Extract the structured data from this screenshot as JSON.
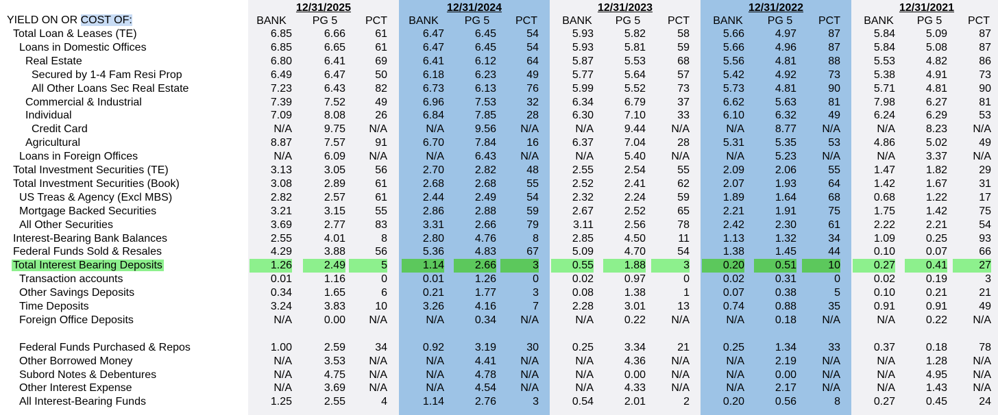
{
  "title_prefix": "YIELD ON OR ",
  "title_highlight": "COST OF:",
  "column_headers": [
    "BANK",
    "PG 5",
    "PCT"
  ],
  "periods": [
    {
      "date": "12/31/2025",
      "shade": "light"
    },
    {
      "date": "12/31/2024",
      "shade": "blue"
    },
    {
      "date": "12/31/2023",
      "shade": "light"
    },
    {
      "date": "12/31/2022",
      "shade": "blue"
    },
    {
      "date": "12/31/2021",
      "shade": "light"
    }
  ],
  "colors": {
    "light_band": "#f1f1f4",
    "blue_band": "#9dc3e6",
    "highlight": "#8df08d",
    "highlight_dark": "#5cc85c"
  },
  "rows": [
    {
      "label": "Total Loan & Leases (TE)",
      "indent": 1,
      "values": [
        [
          "6.85",
          "6.66",
          "61"
        ],
        [
          "6.47",
          "6.45",
          "54"
        ],
        [
          "5.93",
          "5.82",
          "58"
        ],
        [
          "5.66",
          "4.97",
          "87"
        ],
        [
          "5.84",
          "5.09",
          "87"
        ]
      ]
    },
    {
      "label": "Loans in Domestic Offices",
      "indent": 2,
      "values": [
        [
          "6.85",
          "6.65",
          "61"
        ],
        [
          "6.47",
          "6.45",
          "54"
        ],
        [
          "5.93",
          "5.81",
          "59"
        ],
        [
          "5.66",
          "4.96",
          "87"
        ],
        [
          "5.84",
          "5.08",
          "87"
        ]
      ]
    },
    {
      "label": "Real Estate",
      "indent": 3,
      "values": [
        [
          "6.80",
          "6.41",
          "69"
        ],
        [
          "6.41",
          "6.12",
          "64"
        ],
        [
          "5.87",
          "5.53",
          "68"
        ],
        [
          "5.56",
          "4.81",
          "88"
        ],
        [
          "5.53",
          "4.82",
          "86"
        ]
      ]
    },
    {
      "label": "Secured by 1-4 Fam Resi Prop",
      "indent": 4,
      "values": [
        [
          "6.49",
          "6.47",
          "50"
        ],
        [
          "6.18",
          "6.23",
          "49"
        ],
        [
          "5.77",
          "5.64",
          "57"
        ],
        [
          "5.42",
          "4.92",
          "73"
        ],
        [
          "5.38",
          "4.91",
          "73"
        ]
      ]
    },
    {
      "label": "All Other Loans Sec Real Estate",
      "indent": 4,
      "values": [
        [
          "7.23",
          "6.43",
          "82"
        ],
        [
          "6.73",
          "6.13",
          "76"
        ],
        [
          "5.99",
          "5.52",
          "73"
        ],
        [
          "5.73",
          "4.81",
          "90"
        ],
        [
          "5.71",
          "4.81",
          "90"
        ]
      ]
    },
    {
      "label": "Commercial & Industrial",
      "indent": 3,
      "values": [
        [
          "7.39",
          "7.52",
          "49"
        ],
        [
          "6.96",
          "7.53",
          "32"
        ],
        [
          "6.34",
          "6.79",
          "37"
        ],
        [
          "6.62",
          "5.63",
          "81"
        ],
        [
          "7.98",
          "6.27",
          "81"
        ]
      ]
    },
    {
      "label": "Individual",
      "indent": 3,
      "values": [
        [
          "7.09",
          "8.08",
          "26"
        ],
        [
          "6.84",
          "7.85",
          "28"
        ],
        [
          "6.30",
          "7.10",
          "33"
        ],
        [
          "6.10",
          "6.32",
          "49"
        ],
        [
          "6.24",
          "6.29",
          "53"
        ]
      ]
    },
    {
      "label": "Credit Card",
      "indent": 4,
      "values": [
        [
          "N/A",
          "9.75",
          "N/A"
        ],
        [
          "N/A",
          "9.56",
          "N/A"
        ],
        [
          "N/A",
          "9.44",
          "N/A"
        ],
        [
          "N/A",
          "8.77",
          "N/A"
        ],
        [
          "N/A",
          "8.23",
          "N/A"
        ]
      ]
    },
    {
      "label": "Agricultural",
      "indent": 3,
      "values": [
        [
          "8.87",
          "7.57",
          "91"
        ],
        [
          "6.70",
          "7.84",
          "16"
        ],
        [
          "6.37",
          "7.04",
          "28"
        ],
        [
          "5.31",
          "5.35",
          "53"
        ],
        [
          "4.86",
          "5.02",
          "49"
        ]
      ]
    },
    {
      "label": "Loans in Foreign Offices",
      "indent": 2,
      "values": [
        [
          "N/A",
          "6.09",
          "N/A"
        ],
        [
          "N/A",
          "6.43",
          "N/A"
        ],
        [
          "N/A",
          "5.40",
          "N/A"
        ],
        [
          "N/A",
          "5.23",
          "N/A"
        ],
        [
          "N/A",
          "3.37",
          "N/A"
        ]
      ]
    },
    {
      "label": "Total Investment Securities (TE)",
      "indent": 1,
      "values": [
        [
          "3.13",
          "3.05",
          "56"
        ],
        [
          "2.70",
          "2.82",
          "48"
        ],
        [
          "2.55",
          "2.54",
          "55"
        ],
        [
          "2.09",
          "2.06",
          "55"
        ],
        [
          "1.47",
          "1.82",
          "29"
        ]
      ]
    },
    {
      "label": "Total Investment Securities (Book)",
      "indent": 1,
      "values": [
        [
          "3.08",
          "2.89",
          "61"
        ],
        [
          "2.68",
          "2.68",
          "55"
        ],
        [
          "2.52",
          "2.41",
          "62"
        ],
        [
          "2.07",
          "1.93",
          "64"
        ],
        [
          "1.42",
          "1.67",
          "31"
        ]
      ]
    },
    {
      "label": "US Treas & Agency (Excl MBS)",
      "indent": 2,
      "values": [
        [
          "2.82",
          "2.57",
          "61"
        ],
        [
          "2.44",
          "2.49",
          "54"
        ],
        [
          "2.32",
          "2.24",
          "59"
        ],
        [
          "1.89",
          "1.64",
          "68"
        ],
        [
          "0.68",
          "1.22",
          "17"
        ]
      ]
    },
    {
      "label": "Mortgage Backed Securities",
      "indent": 2,
      "values": [
        [
          "3.21",
          "3.15",
          "55"
        ],
        [
          "2.86",
          "2.88",
          "59"
        ],
        [
          "2.67",
          "2.52",
          "65"
        ],
        [
          "2.21",
          "1.91",
          "75"
        ],
        [
          "1.75",
          "1.42",
          "75"
        ]
      ]
    },
    {
      "label": "All Other Securities",
      "indent": 2,
      "values": [
        [
          "3.69",
          "2.77",
          "83"
        ],
        [
          "3.31",
          "2.66",
          "79"
        ],
        [
          "3.11",
          "2.56",
          "78"
        ],
        [
          "2.42",
          "2.30",
          "61"
        ],
        [
          "2.22",
          "2.21",
          "54"
        ]
      ]
    },
    {
      "label": "Interest-Bearing Bank Balances",
      "indent": 1,
      "values": [
        [
          "2.55",
          "4.01",
          "8"
        ],
        [
          "2.80",
          "4.76",
          "8"
        ],
        [
          "2.85",
          "4.50",
          "11"
        ],
        [
          "1.13",
          "1.32",
          "34"
        ],
        [
          "1.09",
          "0.25",
          "93"
        ]
      ]
    },
    {
      "label": "Federal Funds Sold & Resales",
      "indent": 1,
      "values": [
        [
          "4.29",
          "3.88",
          "56"
        ],
        [
          "5.36",
          "4.83",
          "67"
        ],
        [
          "5.09",
          "4.70",
          "54"
        ],
        [
          "1.38",
          "1.45",
          "44"
        ],
        [
          "0.10",
          "0.07",
          "66"
        ]
      ]
    },
    {
      "label": "Total Interest Bearing Deposits",
      "indent": 1,
      "highlight": true,
      "values": [
        [
          "1.26",
          "2.49",
          "5"
        ],
        [
          "1.14",
          "2.66",
          "3"
        ],
        [
          "0.55",
          "1.88",
          "3"
        ],
        [
          "0.20",
          "0.51",
          "10"
        ],
        [
          "0.27",
          "0.41",
          "27"
        ]
      ]
    },
    {
      "label": "Transaction accounts",
      "indent": 2,
      "values": [
        [
          "0.01",
          "1.16",
          "0"
        ],
        [
          "0.01",
          "1.26",
          "0"
        ],
        [
          "0.02",
          "0.97",
          "0"
        ],
        [
          "0.02",
          "0.31",
          "0"
        ],
        [
          "0.02",
          "0.19",
          "3"
        ]
      ]
    },
    {
      "label": "Other Savings Deposits",
      "indent": 2,
      "values": [
        [
          "0.34",
          "1.65",
          "6"
        ],
        [
          "0.21",
          "1.77",
          "3"
        ],
        [
          "0.08",
          "1.38",
          "1"
        ],
        [
          "0.07",
          "0.38",
          "5"
        ],
        [
          "0.10",
          "0.21",
          "21"
        ]
      ]
    },
    {
      "label": "Time Deposits",
      "indent": 2,
      "values": [
        [
          "3.24",
          "3.83",
          "10"
        ],
        [
          "3.26",
          "4.16",
          "7"
        ],
        [
          "2.28",
          "3.01",
          "13"
        ],
        [
          "0.74",
          "0.88",
          "35"
        ],
        [
          "0.91",
          "0.91",
          "49"
        ]
      ]
    },
    {
      "label": "Foreign Office Deposits",
      "indent": 2,
      "values": [
        [
          "N/A",
          "0.00",
          "N/A"
        ],
        [
          "N/A",
          "0.34",
          "N/A"
        ],
        [
          "N/A",
          "0.22",
          "N/A"
        ],
        [
          "N/A",
          "0.18",
          "N/A"
        ],
        [
          "N/A",
          "0.22",
          "N/A"
        ]
      ]
    },
    {
      "label": "",
      "indent": 0,
      "blank": true,
      "values": []
    },
    {
      "label": "Federal Funds Purchased & Repos",
      "indent": 2,
      "values": [
        [
          "1.00",
          "2.59",
          "34"
        ],
        [
          "0.92",
          "3.19",
          "30"
        ],
        [
          "0.25",
          "3.34",
          "21"
        ],
        [
          "0.25",
          "1.34",
          "33"
        ],
        [
          "0.37",
          "0.18",
          "78"
        ]
      ]
    },
    {
      "label": "Other Borrowed Money",
      "indent": 2,
      "values": [
        [
          "N/A",
          "3.53",
          "N/A"
        ],
        [
          "N/A",
          "4.41",
          "N/A"
        ],
        [
          "N/A",
          "4.36",
          "N/A"
        ],
        [
          "N/A",
          "2.19",
          "N/A"
        ],
        [
          "N/A",
          "1.28",
          "N/A"
        ]
      ]
    },
    {
      "label": "Subord Notes & Debentures",
      "indent": 2,
      "values": [
        [
          "N/A",
          "4.75",
          "N/A"
        ],
        [
          "N/A",
          "4.78",
          "N/A"
        ],
        [
          "N/A",
          "0.00",
          "N/A"
        ],
        [
          "N/A",
          "0.00",
          "N/A"
        ],
        [
          "N/A",
          "4.95",
          "N/A"
        ]
      ]
    },
    {
      "label": "Other Interest Expense",
      "indent": 2,
      "values": [
        [
          "N/A",
          "3.69",
          "N/A"
        ],
        [
          "N/A",
          "4.54",
          "N/A"
        ],
        [
          "N/A",
          "4.33",
          "N/A"
        ],
        [
          "N/A",
          "2.17",
          "N/A"
        ],
        [
          "N/A",
          "1.43",
          "N/A"
        ]
      ]
    },
    {
      "label": "All Interest-Bearing Funds",
      "indent": 2,
      "values": [
        [
          "1.25",
          "2.55",
          "4"
        ],
        [
          "1.14",
          "2.76",
          "3"
        ],
        [
          "0.54",
          "2.01",
          "2"
        ],
        [
          "0.20",
          "0.56",
          "8"
        ],
        [
          "0.27",
          "0.45",
          "24"
        ]
      ]
    }
  ]
}
